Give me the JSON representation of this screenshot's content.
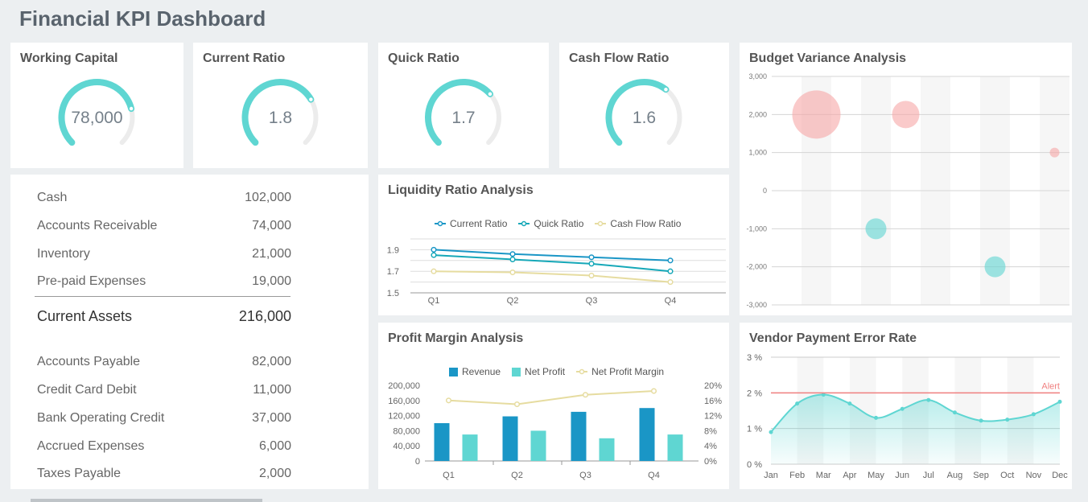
{
  "dashboard": {
    "title": "Financial KPI Dashboard"
  },
  "gauges": [
    {
      "title": "Working Capital",
      "value": "78,000",
      "fraction": 0.78
    },
    {
      "title": "Current Ratio",
      "value": "1.8",
      "fraction": 0.72
    },
    {
      "title": "Quick Ratio",
      "value": "1.7",
      "fraction": 0.68
    },
    {
      "title": "Cash Flow Ratio",
      "value": "1.6",
      "fraction": 0.64
    }
  ],
  "colors": {
    "teal": "#5fd6d2",
    "blue": "#1a96c6",
    "cream": "#e6dca0",
    "pink": "#f7a6a6",
    "track": "#ececec",
    "alert": "#f08080"
  },
  "balance_sheet": {
    "assets": [
      {
        "label": "Cash",
        "value": "102,000"
      },
      {
        "label": "Accounts Receivable",
        "value": "74,000"
      },
      {
        "label": "Inventory",
        "value": "21,000"
      },
      {
        "label": "Pre-paid Expenses",
        "value": "19,000"
      }
    ],
    "assets_total": {
      "label": "Current Assets",
      "value": "216,000"
    },
    "liabilities": [
      {
        "label": "Accounts Payable",
        "value": "82,000"
      },
      {
        "label": "Credit Card Debit",
        "value": "11,000"
      },
      {
        "label": "Bank Operating Credit",
        "value": "37,000"
      },
      {
        "label": "Accrued Expenses",
        "value": "6,000"
      },
      {
        "label": "Taxes Payable",
        "value": "2,000"
      }
    ]
  },
  "panels": {
    "liquidity": "Liquidity Ratio Analysis",
    "profit": "Profit Margin Analysis",
    "budget": "Budget Variance Analysis",
    "vendor": "Vendor Payment Error Rate"
  },
  "chart_data": [
    {
      "type": "line",
      "title": "Liquidity Ratio Analysis",
      "categories": [
        "Q1",
        "Q2",
        "Q3",
        "Q4"
      ],
      "series": [
        {
          "name": "Current Ratio",
          "values": [
            1.9,
            1.86,
            1.83,
            1.8
          ]
        },
        {
          "name": "Quick Ratio",
          "values": [
            1.85,
            1.81,
            1.77,
            1.7
          ]
        },
        {
          "name": "Cash Flow Ratio",
          "values": [
            1.7,
            1.69,
            1.66,
            1.6
          ]
        }
      ],
      "ylim": [
        1.5,
        2.0
      ],
      "yticks": [
        "1.9",
        "1.7",
        "1.5"
      ],
      "legend": "top"
    },
    {
      "type": "bar",
      "title": "Profit Margin Analysis",
      "categories": [
        "Q1",
        "Q2",
        "Q3",
        "Q4"
      ],
      "series": [
        {
          "name": "Revenue",
          "values": [
            100000,
            118000,
            130000,
            140000
          ]
        },
        {
          "name": "Net Profit",
          "values": [
            70000,
            80000,
            60000,
            70000
          ]
        },
        {
          "name": "Net Profit Margin",
          "values": [
            16,
            15,
            17.5,
            18.5
          ],
          "axis": "right"
        }
      ],
      "ylim": [
        0,
        200000
      ],
      "yticks": [
        "200,000",
        "160,000",
        "120,000",
        "80,000",
        "40,000",
        "0"
      ],
      "y2ticks": [
        "20%",
        "16%",
        "12%",
        "8%",
        "4%",
        "0%"
      ],
      "legend": "top"
    },
    {
      "type": "scatter",
      "title": "Budget Variance Analysis",
      "points": [
        {
          "x": 1,
          "y": 2000,
          "size": 30
        },
        {
          "x": 4,
          "y": 2000,
          "size": 17
        },
        {
          "x": 9,
          "y": 1000,
          "size": 6
        },
        {
          "x": 3,
          "y": -1000,
          "size": 13
        },
        {
          "x": 7,
          "y": -2000,
          "size": 13
        }
      ],
      "ylim": [
        -3000,
        3000
      ],
      "yticks": [
        "3,000",
        "2,000",
        "1,000",
        "0",
        "-1,000",
        "-2,000",
        "-3,000"
      ],
      "bands": 10
    },
    {
      "type": "area",
      "title": "Vendor Payment Error Rate",
      "categories": [
        "Jan",
        "Feb",
        "Mar",
        "Apr",
        "May",
        "Jun",
        "Jul",
        "Aug",
        "Sep",
        "Oct",
        "Nov",
        "Dec"
      ],
      "values": [
        0.9,
        1.7,
        1.95,
        1.7,
        1.3,
        1.55,
        1.8,
        1.45,
        1.22,
        1.25,
        1.4,
        1.75
      ],
      "ylim": [
        0,
        3
      ],
      "yticks": [
        "3 %",
        "2 %",
        "1 %",
        "0 %"
      ],
      "alert": {
        "label": "Alert",
        "value": 2
      }
    }
  ]
}
